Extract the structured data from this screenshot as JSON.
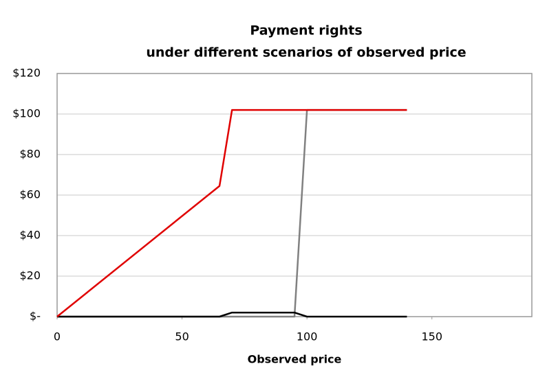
{
  "chart_data": {
    "type": "line",
    "title": "Payment rights",
    "subtitle": "under different scenarios of observed price",
    "x_label": "Observed price",
    "x": [
      0,
      65,
      70,
      95,
      100,
      140
    ],
    "series": [
      {
        "color": "#808080",
        "values": [
          0,
          0,
          0,
          0,
          102,
          102
        ]
      },
      {
        "color": "#000000",
        "values": [
          0,
          0,
          2,
          2,
          0,
          0
        ]
      },
      {
        "color": "#e00000",
        "values": [
          0,
          64.5,
          102,
          102,
          102,
          102
        ]
      }
    ],
    "xlim": [
      0,
      190
    ],
    "xticks": [
      0,
      50,
      100,
      150
    ],
    "ylim": [
      0,
      120
    ],
    "yticks": [
      {
        "value": 0,
        "label": "$-"
      },
      {
        "value": 20,
        "label": "$20"
      },
      {
        "value": 40,
        "label": "$40"
      },
      {
        "value": 60,
        "label": "$60"
      },
      {
        "value": 80,
        "label": "$80"
      },
      {
        "value": 100,
        "label": "$100"
      },
      {
        "value": 120,
        "label": "$120"
      }
    ],
    "grid": true
  }
}
